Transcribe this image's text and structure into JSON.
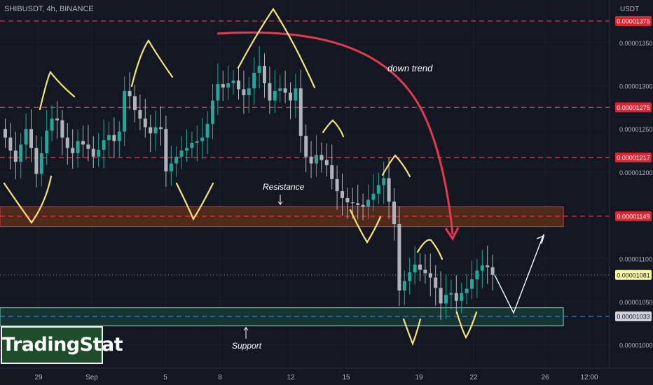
{
  "header": {
    "title": "SHIBUSDT, 4h, BINANCE"
  },
  "axis": {
    "currency": "USDT"
  },
  "logo": {
    "text": "TradingStat"
  },
  "annotations": {
    "down_trend": "down trend",
    "resistance": "Resistance",
    "support": "Support"
  },
  "colors": {
    "background": "#131722",
    "bull": "#26a69a",
    "bear": "#aeb4ba",
    "level_line": "#e3383f",
    "support_line": "#3a7bd5",
    "zigzag": "#f5e37a",
    "trend_arrow": "#e53950",
    "resistance_zone": "#5a2e1a",
    "support_zone": "#173a35"
  },
  "chart_data": {
    "type": "candlestick",
    "symbol": "SHIBUSDT",
    "timeframe": "4h",
    "exchange": "BINANCE",
    "y_unit": "USDT",
    "ylim": [
      9.8e-06,
      1.4e-05
    ],
    "y_ticks": [
      "0.00001350",
      "0.00001300",
      "0.00001250",
      "0.00001200",
      "0.00001100",
      "0.00001050",
      "0.00001000"
    ],
    "x_ticks": [
      "29",
      "Sep",
      "5",
      "8",
      "12",
      "15",
      "19",
      "22",
      "26",
      "12:00"
    ],
    "levels": [
      {
        "price": 1.375e-05,
        "label": "0.00001375",
        "style": "dashed"
      },
      {
        "price": 1.275e-05,
        "label": "0.00001275",
        "style": "dashed"
      },
      {
        "price": 1.217e-05,
        "label": "0.00001217",
        "style": "dashed"
      },
      {
        "price": 1.149e-05,
        "label": "0.00001149",
        "style": "dashed"
      },
      {
        "price": 1.033e-05,
        "label": "0.00001033",
        "style": "dashed"
      }
    ],
    "last_price": {
      "price": 1.081e-05,
      "label": "0.00001081"
    },
    "zones": [
      {
        "name": "Resistance",
        "from": 1.137e-05,
        "to": 1.16e-05
      },
      {
        "name": "Support",
        "from": 1.022e-05,
        "to": 1.043e-05
      }
    ],
    "close_series": [
      1.24e-05,
      1.225e-05,
      1.212e-05,
      1.232e-05,
      1.25e-05,
      1.228e-05,
      1.198e-05,
      1.222e-05,
      1.248e-05,
      1.262e-05,
      1.26e-05,
      1.24e-05,
      1.228e-05,
      1.222e-05,
      1.236e-05,
      1.232e-05,
      1.227e-05,
      1.218e-05,
      1.226e-05,
      1.237e-05,
      1.243e-05,
      1.236e-05,
      1.247e-05,
      1.294e-05,
      1.288e-05,
      1.272e-05,
      1.262e-05,
      1.252e-05,
      1.245e-05,
      1.252e-05,
      1.25e-05,
      1.201e-05,
      1.21e-05,
      1.218e-05,
      1.225e-05,
      1.228e-05,
      1.234e-05,
      1.236e-05,
      1.24e-05,
      1.256e-05,
      1.283e-05,
      1.302e-05,
      1.298e-05,
      1.303e-05,
      1.306e-05,
      1.296e-05,
      1.289e-05,
      1.297e-05,
      1.315e-05,
      1.323e-05,
      1.303e-05,
      1.283e-05,
      1.294e-05,
      1.297e-05,
      1.292e-05,
      1.283e-05,
      1.297e-05,
      1.242e-05,
      1.218e-05,
      1.21e-05,
      1.22e-05,
      1.214e-05,
      1.208e-05,
      1.192e-05,
      1.178e-05,
      1.17e-05,
      1.165e-05,
      1.164e-05,
      1.162e-05,
      1.16e-05,
      1.168e-05,
      1.175e-05,
      1.185e-05,
      1.193e-05,
      1.166e-05,
      1.14e-05,
      1.063e-05,
      1.074e-05,
      1.084e-05,
      1.093e-05,
      1.087e-05,
      1.083e-05,
      1.078e-05,
      1.066e-05,
      1.048e-05,
      1.058e-05,
      1.06e-05,
      1.051e-05,
      1.06e-05,
      1.065e-05,
      1.076e-05,
      1.086e-05,
      1.092e-05,
      1.09e-05,
      1.081e-05
    ],
    "projection": [
      1.081e-05,
      1.037e-05,
      1.128e-05
    ]
  }
}
